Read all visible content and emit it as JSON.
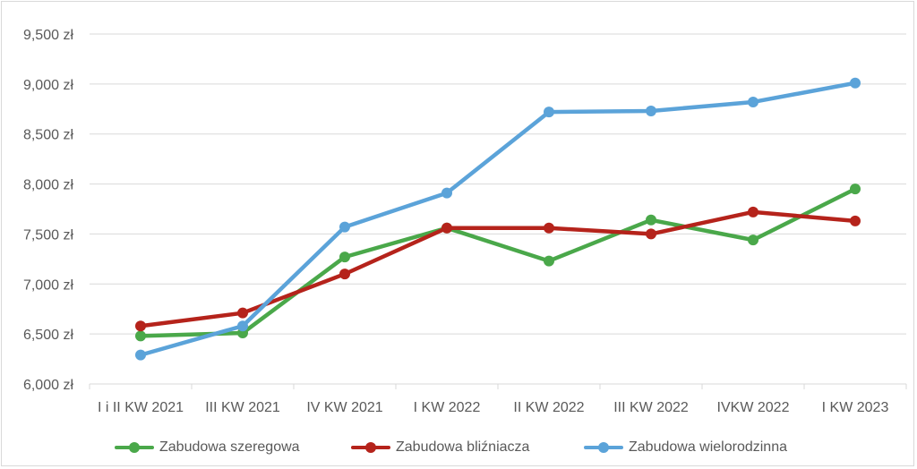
{
  "chart_data": {
    "type": "line",
    "categories": [
      "I i II KW 2021",
      "III KW 2021",
      "IV KW 2021",
      "I KW 2022",
      "II KW 2022",
      "III KW 2022",
      "IVKW 2022",
      "I KW 2023"
    ],
    "yticks": [
      "6,000 zł",
      "6,500 zł",
      "7,000 zł",
      "7,500 zł",
      "8,000 zł",
      "8,500 zł",
      "9,000 zł",
      "9,500 zł"
    ],
    "ylim": [
      6000,
      9500
    ],
    "grid": true,
    "legend_position": "bottom",
    "series": [
      {
        "name": "Zabudowa szeregowa",
        "color": "#4aa84a",
        "values": [
          6480,
          6510,
          7270,
          7560,
          7230,
          7640,
          7440,
          7950
        ]
      },
      {
        "name": "Zabudowa bliźniacza",
        "color": "#b5231b",
        "values": [
          6580,
          6710,
          7100,
          7560,
          7560,
          7500,
          7720,
          7630
        ]
      },
      {
        "name": "Zabudowa wielorodzinna",
        "color": "#5ba3d9",
        "values": [
          6290,
          6580,
          7570,
          7910,
          8720,
          8730,
          8820,
          9010
        ]
      }
    ]
  }
}
